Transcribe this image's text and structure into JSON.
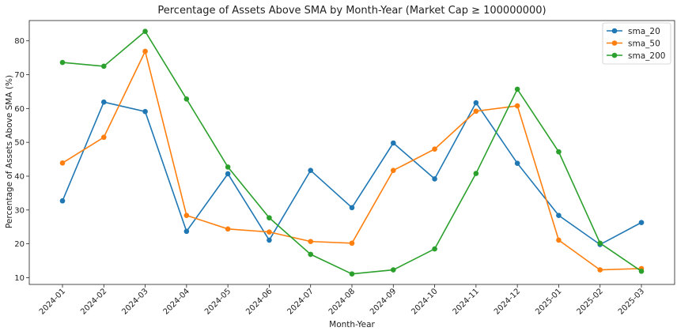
{
  "chart_data": {
    "type": "line",
    "title": "Percentage of Assets Above SMA by Month-Year (Market Cap ≥ 100000000)",
    "xlabel": "Month-Year",
    "ylabel": "Percentage of Assets Above SMA (%)",
    "categories": [
      "2024-01",
      "2024-02",
      "2024-03",
      "2024-04",
      "2024-05",
      "2024-06",
      "2024-07",
      "2024-08",
      "2024-09",
      "2024-10",
      "2024-11",
      "2024-12",
      "2025-01",
      "2025-02",
      "2025-03"
    ],
    "ylim": [
      8,
      86
    ],
    "yticks": [
      10,
      20,
      30,
      40,
      50,
      60,
      70,
      80
    ],
    "grid": false,
    "legend_position": "top-right",
    "series": [
      {
        "name": "sma_20",
        "color": "#1f77b4",
        "values": [
          32.7,
          61.9,
          59.1,
          23.7,
          40.7,
          21.1,
          41.7,
          30.7,
          49.8,
          39.2,
          61.7,
          43.8,
          28.4,
          19.8,
          26.3
        ]
      },
      {
        "name": "sma_50",
        "color": "#ff7f0e",
        "values": [
          43.9,
          51.5,
          76.9,
          28.4,
          24.4,
          23.5,
          20.7,
          20.2,
          41.7,
          48.0,
          59.2,
          60.8,
          21.1,
          12.3,
          12.7
        ]
      },
      {
        "name": "sma_200",
        "color": "#2ca02c",
        "values": [
          73.6,
          72.5,
          82.8,
          62.8,
          42.7,
          27.7,
          16.9,
          11.1,
          12.3,
          18.5,
          40.8,
          65.7,
          47.2,
          20.2,
          11.9
        ]
      }
    ]
  }
}
